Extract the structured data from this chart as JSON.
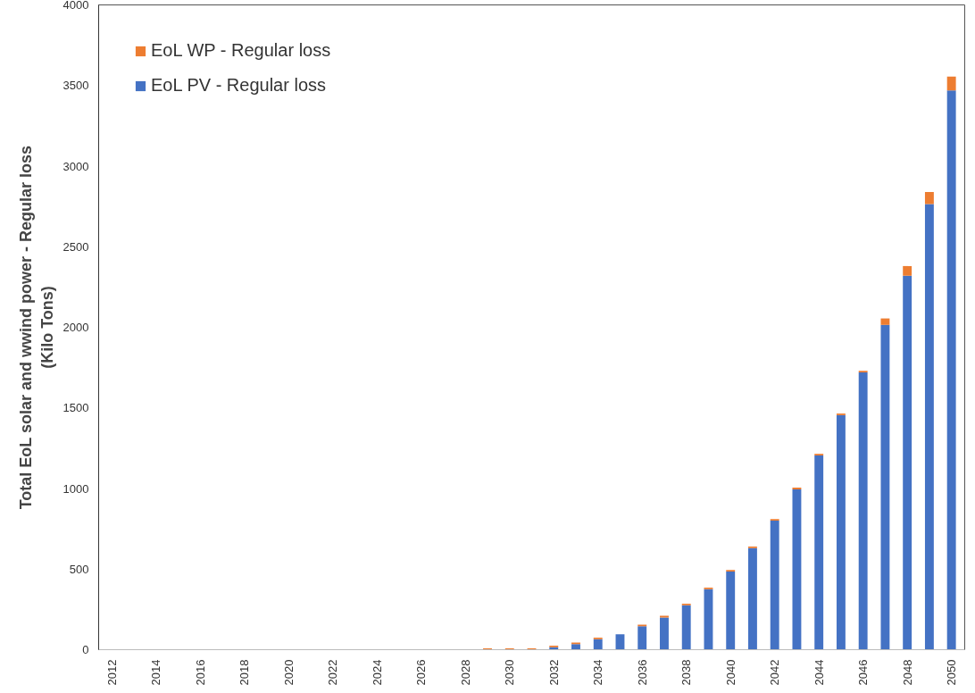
{
  "chart_data": {
    "type": "bar",
    "stacked": true,
    "ylabel": "Total EoL solar and wwind power - Regular loss\n(Kilo Tons)",
    "categories": [
      "2012",
      null,
      "2014",
      null,
      "2016",
      null,
      "2018",
      null,
      "2020",
      null,
      "2022",
      null,
      "2024",
      null,
      "2026",
      null,
      "2028",
      null,
      "2030",
      null,
      "2032",
      null,
      "2034",
      null,
      "2036",
      null,
      "2038",
      null,
      "2040",
      null,
      "2042",
      null,
      "2044",
      null,
      "2046",
      null,
      "2048",
      null,
      "2050"
    ],
    "series": [
      {
        "name": "EoL PV - Regular loss",
        "color": "#4472c4",
        "values": [
          0,
          0,
          0,
          0,
          0,
          0,
          0,
          0,
          0,
          0,
          0,
          0,
          0,
          0,
          0,
          0,
          0,
          null,
          null,
          null,
          15,
          35,
          65,
          95,
          145,
          200,
          275,
          375,
          485,
          630,
          800,
          995,
          1205,
          1455,
          1720,
          2015,
          2320,
          2765,
          3470
        ]
      },
      {
        "name": "EoL WP - Regular loss",
        "color": "#ed7d31",
        "values": [
          0,
          0,
          0,
          0,
          0,
          0,
          0,
          0,
          0,
          0,
          0,
          0,
          0,
          0,
          0,
          0,
          0,
          8,
          8,
          8,
          10,
          10,
          10,
          null,
          10,
          10,
          10,
          10,
          10,
          10,
          10,
          10,
          10,
          10,
          10,
          40,
          60,
          75,
          85
        ]
      }
    ],
    "ylim": [
      0,
      4000
    ],
    "yticks": [
      0,
      500,
      1000,
      1500,
      2000,
      2500,
      3000,
      3500,
      4000
    ],
    "grid": false,
    "legend": "top left"
  }
}
